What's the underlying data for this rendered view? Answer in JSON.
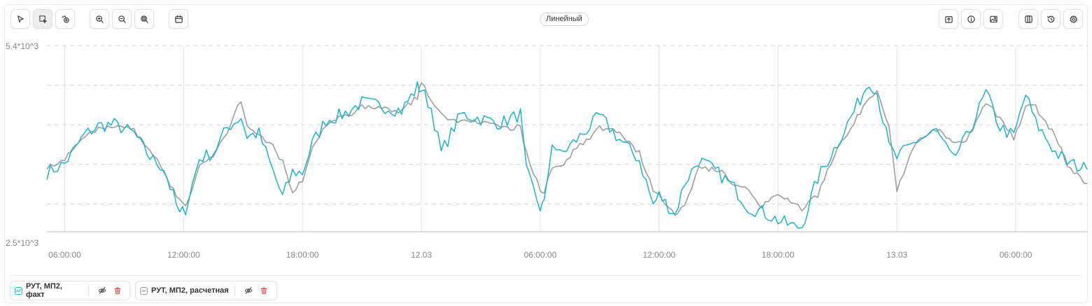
{
  "toolbar": {
    "mode_label": "Линейный"
  },
  "legend": [
    {
      "name": "РУТ, МП2, факт",
      "color": "#1eb4cc"
    },
    {
      "name": "РУТ, МП2, расчетная",
      "color": "#9e9e9e"
    }
  ],
  "chart_data": {
    "type": "line",
    "title": "",
    "xlabel": "",
    "ylabel": "",
    "ylim_labels": [
      "5.4*10^3",
      "2.5*10^3"
    ],
    "ylim": [
      2500,
      5400
    ],
    "x_tick_labels": [
      "06:00:00",
      "12:00:00",
      "18:00:00",
      "12.03",
      "06:00:00",
      "12:00:00",
      "18:00:00",
      "13.03",
      "06:00:00"
    ],
    "x_ticks_hours": [
      6,
      12,
      18,
      24,
      30,
      36,
      42,
      48,
      54
    ],
    "x_range_hours": [
      5.1,
      57.6
    ],
    "grid": true,
    "series": [
      {
        "name": "РУТ, МП2, факт",
        "color": "#1eb4cc",
        "x_hours": [
          5.1,
          6.0,
          7.0,
          7.7,
          8.5,
          9.5,
          10.3,
          11.0,
          11.8,
          12.1,
          12.8,
          13.5,
          14.2,
          14.9,
          15.2,
          15.8,
          16.5,
          17.0,
          17.5,
          18.0,
          18.5,
          19.2,
          20.0,
          21.0,
          22.0,
          23.0,
          23.8,
          24.0,
          24.5,
          25.0,
          26.0,
          27.0,
          28.0,
          29.0,
          29.3,
          30.0,
          30.2,
          30.6,
          31.0,
          32.0,
          33.0,
          34.0,
          35.0,
          35.7,
          36.0,
          36.8,
          37.3,
          38.0,
          39.0,
          39.8,
          40.5,
          41.2,
          42.0,
          42.8,
          43.2,
          44.0,
          45.0,
          46.0,
          46.6,
          47.0,
          47.6,
          48.0,
          49.0,
          50.0,
          50.8,
          51.5,
          52.5,
          53.2,
          53.9,
          54.5,
          55.0,
          56.0,
          56.6,
          57.6
        ],
        "values": [
          3420,
          3560,
          4010,
          4150,
          4170,
          4030,
          3660,
          3500,
          2760,
          2860,
          3640,
          3730,
          4120,
          4290,
          3990,
          4030,
          3450,
          3040,
          3430,
          3420,
          3880,
          4240,
          4320,
          4510,
          4460,
          4390,
          4750,
          4720,
          4420,
          3730,
          4330,
          4260,
          4190,
          4330,
          3430,
          2880,
          2920,
          3910,
          3690,
          3980,
          4300,
          3940,
          3620,
          2920,
          3070,
          2770,
          3270,
          3620,
          3410,
          3180,
          2880,
          2810,
          2680,
          2580,
          2580,
          3330,
          3880,
          4470,
          4860,
          4670,
          3830,
          3650,
          3920,
          4070,
          3620,
          3960,
          4660,
          4130,
          3980,
          4640,
          4200,
          3740,
          3580,
          3470
        ]
      },
      {
        "name": "РУТ, МП2, расчетная",
        "color": "#9e9e9e",
        "x_hours": [
          5.1,
          6.0,
          7.0,
          7.7,
          8.5,
          9.5,
          10.3,
          11.0,
          11.8,
          12.1,
          12.8,
          13.5,
          14.2,
          14.9,
          15.2,
          15.8,
          16.5,
          17.0,
          17.5,
          18.0,
          18.5,
          19.2,
          20.0,
          21.0,
          22.0,
          23.0,
          23.8,
          24.0,
          24.5,
          25.0,
          26.0,
          27.0,
          28.0,
          29.0,
          29.3,
          30.0,
          30.2,
          30.6,
          31.0,
          32.0,
          33.0,
          34.0,
          35.0,
          35.7,
          36.0,
          36.8,
          37.3,
          38.0,
          39.0,
          39.8,
          40.5,
          41.2,
          42.0,
          42.8,
          43.2,
          44.0,
          45.0,
          46.0,
          46.6,
          47.0,
          47.6,
          48.0,
          49.0,
          50.0,
          50.8,
          51.5,
          52.5,
          53.2,
          53.9,
          54.5,
          55.0,
          56.0,
          56.6,
          57.6
        ],
        "values": [
          3520,
          3620,
          3980,
          4120,
          4140,
          4080,
          3790,
          3420,
          2970,
          2910,
          3520,
          3680,
          4060,
          4550,
          4190,
          3990,
          3820,
          3600,
          3100,
          3320,
          3810,
          4160,
          4280,
          4440,
          4430,
          4380,
          4600,
          4820,
          4560,
          4320,
          4210,
          4230,
          4100,
          4130,
          3720,
          3160,
          3100,
          3500,
          3520,
          3850,
          4110,
          4060,
          3720,
          3170,
          3080,
          2790,
          2950,
          3490,
          3480,
          3240,
          3150,
          2900,
          3100,
          2930,
          2840,
          3080,
          3800,
          4280,
          4620,
          4700,
          4130,
          3160,
          3920,
          4100,
          3880,
          3900,
          4500,
          4280,
          3960,
          4440,
          4440,
          3980,
          3540,
          3250
        ]
      }
    ]
  }
}
